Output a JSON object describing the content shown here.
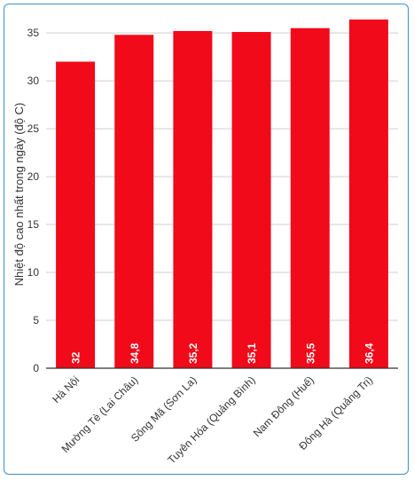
{
  "chart_data": {
    "type": "bar",
    "categories": [
      "Hà Nội",
      "Mường Tè (Lai Châu)",
      "Sông Mã (Sơn La)",
      "Tuyên Hóa (Quảng Bình)",
      "Nam Đông (Huế)",
      "Đông Hà (Quảng Trị)"
    ],
    "values": [
      32,
      34.8,
      35.2,
      35.1,
      35.5,
      36.4
    ],
    "data_labels": [
      "32",
      "34,8",
      "35,2",
      "35,1",
      "35,5",
      "36,4"
    ],
    "title": "",
    "xlabel": "",
    "ylabel": "Nhiệt độ cao nhất trong ngày (độ C)",
    "ylim": [
      0,
      36.4
    ],
    "yticks": [
      0,
      5,
      10,
      15,
      20,
      25,
      30,
      35
    ],
    "grid": true,
    "bar_color": "#f00a1a",
    "frame_color": "#3d8fc6"
  }
}
